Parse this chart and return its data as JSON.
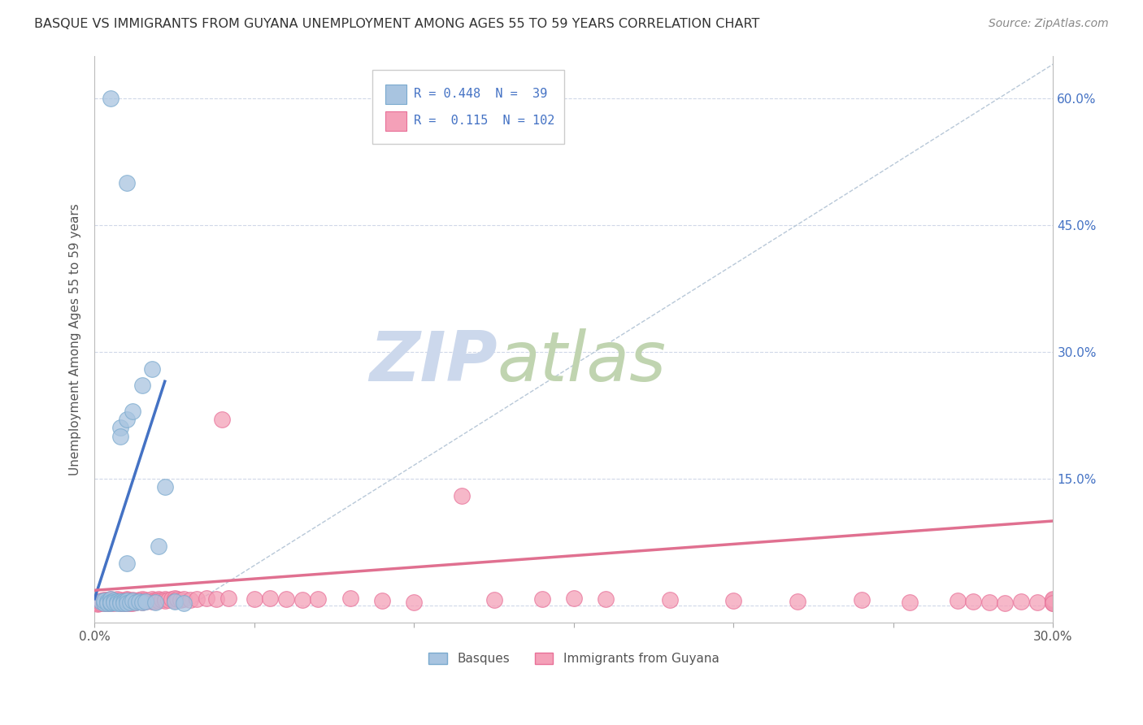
{
  "title": "BASQUE VS IMMIGRANTS FROM GUYANA UNEMPLOYMENT AMONG AGES 55 TO 59 YEARS CORRELATION CHART",
  "source": "Source: ZipAtlas.com",
  "ylabel": "Unemployment Among Ages 55 to 59 years",
  "xlim": [
    0.0,
    0.3
  ],
  "ylim": [
    -0.02,
    0.65
  ],
  "ytick_positions": [
    0.0,
    0.15,
    0.3,
    0.45,
    0.6
  ],
  "ytick_labels_right": [
    "",
    "15.0%",
    "30.0%",
    "45.0%",
    "60.0%"
  ],
  "xtick_positions": [
    0.0,
    0.05,
    0.1,
    0.15,
    0.2,
    0.25,
    0.3
  ],
  "xtick_labels": [
    "0.0%",
    "",
    "",
    "",
    "",
    "",
    "30.0%"
  ],
  "legend_R1": "0.448",
  "legend_N1": "39",
  "legend_R2": "0.115",
  "legend_N2": "102",
  "color_basque_fill": "#a8c4e0",
  "color_basque_edge": "#7aaace",
  "color_guyana_fill": "#f4a0b8",
  "color_guyana_edge": "#e87098",
  "color_line_basque": "#4472c4",
  "color_line_guyana": "#e07090",
  "color_diag_line": "#b8c8d8",
  "watermark_zip_color": "#ccd8ec",
  "watermark_atlas_color": "#c0d4b0",
  "background_color": "#ffffff",
  "grid_color": "#d0d8e8",
  "title_color": "#333333",
  "source_color": "#888888",
  "ylabel_color": "#555555",
  "tick_color": "#4472c4",
  "basque_x": [
    0.002,
    0.003,
    0.003,
    0.004,
    0.004,
    0.005,
    0.005,
    0.005,
    0.005,
    0.005,
    0.006,
    0.006,
    0.007,
    0.007,
    0.008,
    0.008,
    0.008,
    0.008,
    0.009,
    0.009,
    0.01,
    0.01,
    0.01,
    0.01,
    0.01,
    0.011,
    0.012,
    0.012,
    0.013,
    0.014,
    0.015,
    0.015,
    0.016,
    0.018,
    0.019,
    0.02,
    0.022,
    0.025,
    0.028
  ],
  "basque_y": [
    0.005,
    0.003,
    0.006,
    0.005,
    0.003,
    0.6,
    0.005,
    0.008,
    0.003,
    0.004,
    0.006,
    0.004,
    0.005,
    0.003,
    0.21,
    0.2,
    0.005,
    0.003,
    0.005,
    0.003,
    0.5,
    0.22,
    0.05,
    0.006,
    0.003,
    0.004,
    0.23,
    0.006,
    0.004,
    0.005,
    0.26,
    0.004,
    0.005,
    0.28,
    0.004,
    0.07,
    0.14,
    0.005,
    0.003
  ],
  "guyana_x": [
    0.001,
    0.001,
    0.001,
    0.002,
    0.002,
    0.002,
    0.003,
    0.003,
    0.003,
    0.003,
    0.004,
    0.004,
    0.004,
    0.005,
    0.005,
    0.005,
    0.005,
    0.005,
    0.006,
    0.006,
    0.006,
    0.007,
    0.007,
    0.007,
    0.008,
    0.008,
    0.008,
    0.009,
    0.009,
    0.009,
    0.01,
    0.01,
    0.01,
    0.01,
    0.011,
    0.011,
    0.012,
    0.012,
    0.012,
    0.013,
    0.013,
    0.014,
    0.014,
    0.015,
    0.015,
    0.015,
    0.016,
    0.016,
    0.017,
    0.018,
    0.018,
    0.019,
    0.019,
    0.02,
    0.02,
    0.021,
    0.022,
    0.022,
    0.023,
    0.024,
    0.025,
    0.025,
    0.026,
    0.027,
    0.028,
    0.03,
    0.032,
    0.035,
    0.038,
    0.04,
    0.042,
    0.05,
    0.055,
    0.06,
    0.065,
    0.07,
    0.08,
    0.09,
    0.1,
    0.115,
    0.125,
    0.14,
    0.15,
    0.16,
    0.18,
    0.2,
    0.22,
    0.24,
    0.255,
    0.27,
    0.275,
    0.28,
    0.285,
    0.29,
    0.295,
    0.3,
    0.3,
    0.3,
    0.3,
    0.3,
    0.3,
    0.3
  ],
  "guyana_y": [
    0.002,
    0.004,
    0.003,
    0.005,
    0.003,
    0.006,
    0.004,
    0.006,
    0.003,
    0.007,
    0.005,
    0.003,
    0.007,
    0.008,
    0.005,
    0.003,
    0.006,
    0.004,
    0.007,
    0.005,
    0.003,
    0.006,
    0.004,
    0.008,
    0.007,
    0.004,
    0.003,
    0.006,
    0.004,
    0.003,
    0.008,
    0.005,
    0.003,
    0.007,
    0.005,
    0.003,
    0.007,
    0.005,
    0.003,
    0.006,
    0.004,
    0.007,
    0.005,
    0.008,
    0.006,
    0.004,
    0.007,
    0.005,
    0.006,
    0.008,
    0.005,
    0.007,
    0.005,
    0.008,
    0.006,
    0.007,
    0.008,
    0.006,
    0.007,
    0.008,
    0.009,
    0.006,
    0.008,
    0.007,
    0.008,
    0.007,
    0.008,
    0.009,
    0.008,
    0.22,
    0.009,
    0.008,
    0.009,
    0.008,
    0.007,
    0.008,
    0.009,
    0.006,
    0.004,
    0.13,
    0.007,
    0.008,
    0.009,
    0.008,
    0.007,
    0.006,
    0.005,
    0.007,
    0.004,
    0.006,
    0.005,
    0.004,
    0.003,
    0.005,
    0.004,
    0.003,
    0.004,
    0.005,
    0.006,
    0.007,
    0.008,
    0.003
  ],
  "basque_line_x0": 0.0,
  "basque_line_y0": 0.008,
  "basque_line_x1": 0.022,
  "basque_line_y1": 0.265,
  "guyana_line_x0": 0.0,
  "guyana_line_y0": 0.018,
  "guyana_line_x1": 0.3,
  "guyana_line_y1": 0.1,
  "diag_line_x0": 0.03,
  "diag_line_y0": 0.0,
  "diag_line_x1": 0.3,
  "diag_line_y1": 0.64
}
